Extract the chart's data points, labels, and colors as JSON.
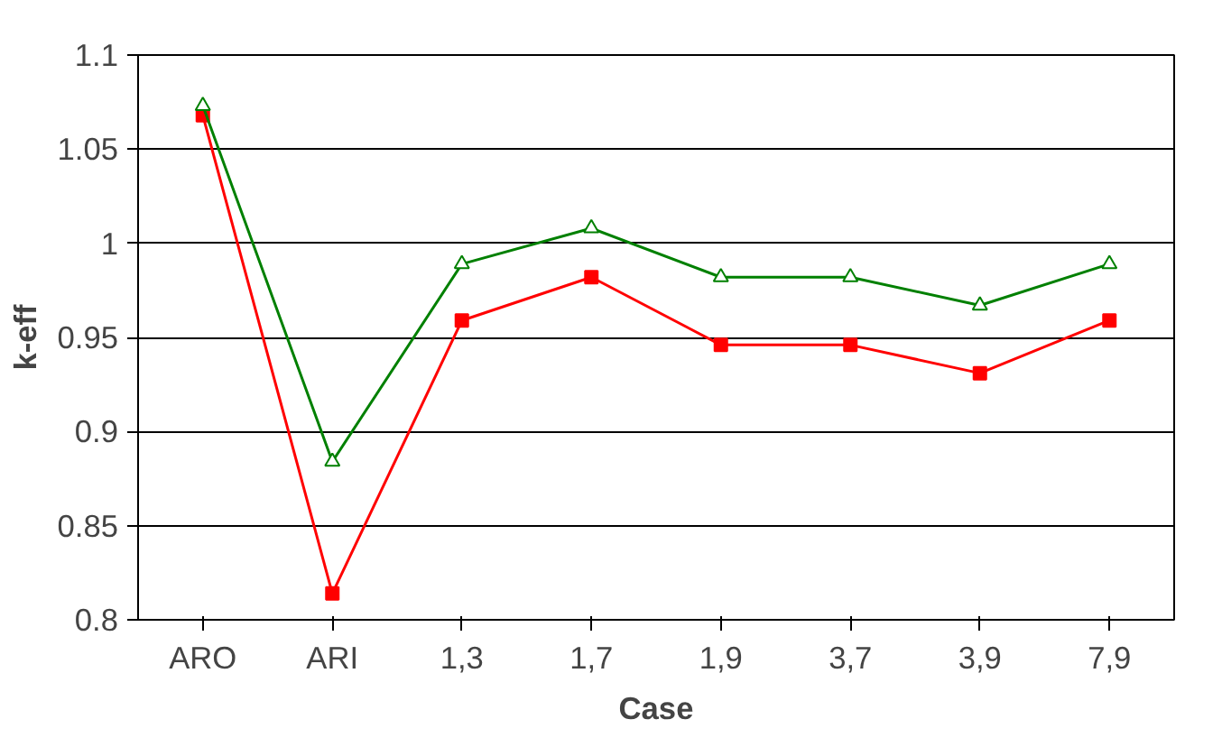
{
  "chart_data": {
    "type": "line",
    "xlabel": "Case",
    "ylabel": "k-eff",
    "categories": [
      "ARO",
      "ARI",
      "1,3",
      "1,7",
      "1,9",
      "3,7",
      "3,9",
      "7,9"
    ],
    "series": [
      {
        "color": "#ff0000",
        "marker": "square",
        "values": [
          1.068,
          0.814,
          0.959,
          0.982,
          0.946,
          0.946,
          0.931,
          0.959
        ]
      },
      {
        "color": "#008000",
        "marker": "triangle",
        "values": [
          1.073,
          0.884,
          0.989,
          1.008,
          0.982,
          0.982,
          0.967,
          0.989
        ]
      }
    ],
    "ylim": [
      0.8,
      1.1
    ],
    "yticks": [
      0.8,
      0.85,
      0.9,
      0.95,
      1,
      1.05,
      1.1
    ],
    "grid": "y"
  }
}
